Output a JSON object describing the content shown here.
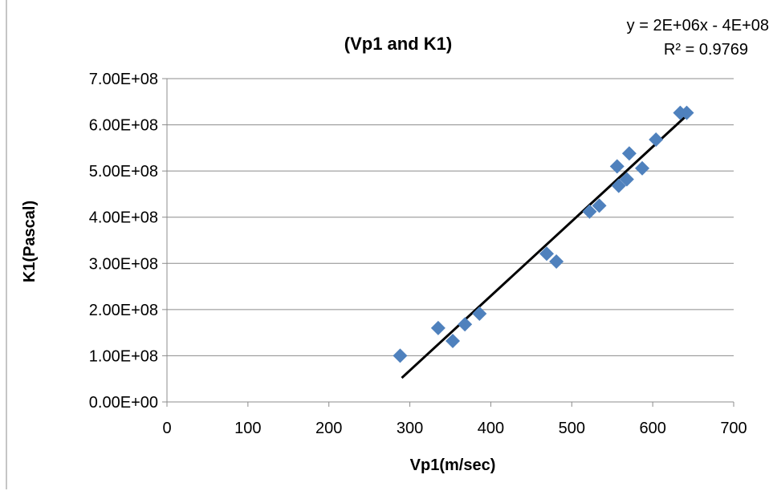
{
  "chart_data": {
    "type": "scatter",
    "title": "(Vp1 and K1)",
    "xlabel": "Vp1(m/sec)",
    "ylabel": "K1(Pascal)",
    "xlim": [
      0,
      700
    ],
    "ylim": [
      0,
      700000000
    ],
    "x_ticks": [
      "0",
      "100",
      "200",
      "300",
      "400",
      "500",
      "600",
      "700"
    ],
    "y_ticks": [
      "0.00E+00",
      "1.00E+08",
      "2.00E+08",
      "3.00E+08",
      "4.00E+08",
      "5.00E+08",
      "6.00E+08",
      "7.00E+08"
    ],
    "grid": "horizontal",
    "marker": "diamond",
    "marker_color": "#4F81BD",
    "trendline_color": "#000000",
    "points": [
      {
        "x": 288,
        "y": 100000000
      },
      {
        "x": 335,
        "y": 160000000
      },
      {
        "x": 353,
        "y": 132000000
      },
      {
        "x": 368,
        "y": 168000000
      },
      {
        "x": 386,
        "y": 191000000
      },
      {
        "x": 469,
        "y": 321000000
      },
      {
        "x": 481,
        "y": 304000000
      },
      {
        "x": 522,
        "y": 412000000
      },
      {
        "x": 534,
        "y": 425000000
      },
      {
        "x": 556,
        "y": 510000000
      },
      {
        "x": 558,
        "y": 468000000
      },
      {
        "x": 568,
        "y": 482000000
      },
      {
        "x": 571,
        "y": 538000000
      },
      {
        "x": 587,
        "y": 506000000
      },
      {
        "x": 604,
        "y": 568000000
      },
      {
        "x": 634,
        "y": 626000000
      },
      {
        "x": 642,
        "y": 626000000
      }
    ],
    "trendline": {
      "x_start": 290,
      "y_start": 52000000,
      "x_end": 640,
      "y_end": 617000000,
      "equation": "y = 2E+06x - 4E+08",
      "r_squared": "R² = 0.9769"
    }
  }
}
